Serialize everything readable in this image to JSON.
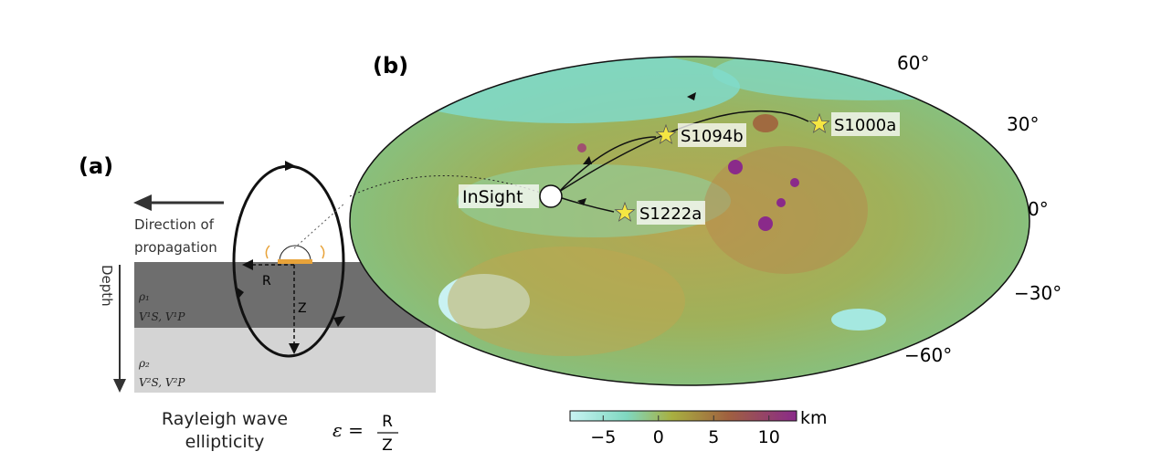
{
  "panel_a": {
    "label": "(a)",
    "direction_line1": "Direction of",
    "direction_line2": "propagation",
    "depth_label": "Depth",
    "R_label": "R",
    "Z_label": "Z",
    "layer1_rho": "ρ₁",
    "layer1_v": "V¹S, V¹P",
    "layer2_rho": "ρ₂",
    "layer2_v": "V²S, V²P",
    "caption_line1": "Rayleigh wave",
    "caption_line2": "ellipticity",
    "formula_lhs": "ε =",
    "formula_num": "R",
    "formula_den": "Z",
    "colors": {
      "layer1": "#6e6e6e",
      "layer2": "#d4d4d4",
      "sensor": "#e8a33a"
    }
  },
  "panel_b": {
    "label": "(b)",
    "station": "InSight",
    "events": [
      "S1000a",
      "S1094b",
      "S1222a"
    ],
    "latitude_labels": [
      "60°",
      "30°",
      "0°",
      "−30°",
      "−60°"
    ],
    "colorbar": {
      "unit": "km",
      "ticks": [
        "−5",
        "0",
        "5",
        "10"
      ],
      "range": [
        -8,
        12.5
      ],
      "colors": [
        "#c8f4f4",
        "#7fd8c0",
        "#a8b040",
        "#a06040",
        "#8a2a8a"
      ]
    },
    "star_color": "#f5e642"
  }
}
